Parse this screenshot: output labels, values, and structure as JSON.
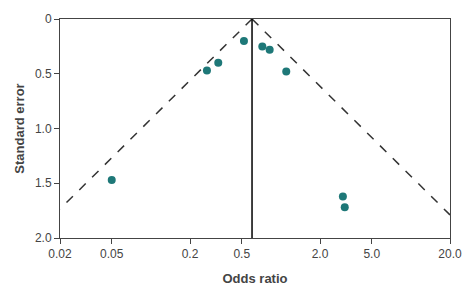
{
  "chart_data": {
    "type": "scatter",
    "xlabel": "Odds ratio",
    "ylabel": "Standard error",
    "log": "x",
    "grid": false,
    "xlim": [
      0.02,
      20.0
    ],
    "ylim": [
      2.0,
      0.0
    ],
    "xticks": [
      0.02,
      0.05,
      0.2,
      0.5,
      {
        "value": 2.0,
        "label": "2.0"
      },
      {
        "value": 5.0,
        "label": "5.0"
      },
      {
        "value": 20.0,
        "label": "20.0"
      }
    ],
    "yticks": [
      0,
      0.5,
      {
        "value": 1.0,
        "label": "1.0"
      },
      1.5,
      {
        "value": 2.0,
        "label": "2.0"
      }
    ],
    "series": [
      {
        "type": "line",
        "line_style": "dashed",
        "color": "#333333",
        "x": [
          0.6,
          20.0
        ],
        "y": [
          0,
          1.78906
        ]
      },
      {
        "type": "line",
        "line_style": "dashed",
        "color": "#333333",
        "x": [
          0.6,
          0.02
        ],
        "y": [
          0,
          1.735305
        ]
      },
      {
        "type": "line",
        "line_style": "solid",
        "color": "#000000",
        "x": [
          0.6,
          0.6
        ],
        "y": [
          0,
          2.0
        ]
      },
      {
        "type": "scatter",
        "marker": "circle",
        "color": "#1e7878",
        "x": [
          0.05,
          0.27,
          0.33,
          0.52,
          0.72,
          0.82,
          1.1,
          3.0,
          3.1
        ],
        "y": [
          1.47,
          0.47,
          0.4,
          0.2,
          0.25,
          0.28,
          0.48,
          1.62,
          1.72
        ]
      }
    ]
  }
}
